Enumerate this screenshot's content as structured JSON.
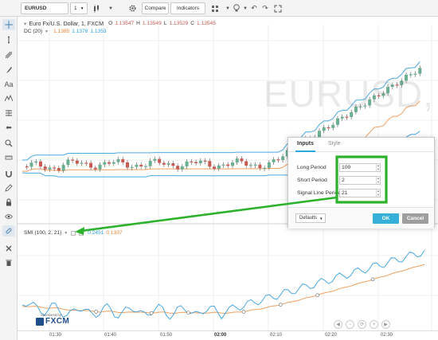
{
  "toolbar": {
    "symbol": "EURUSD",
    "interval": "1",
    "compare_label": "Compare",
    "indicators_label": "Indicators"
  },
  "chart": {
    "title": "Euro Fx/U.S. Dollar, 1, FXCM",
    "ohlc": {
      "o_label": "O",
      "o": "1.13547",
      "h_label": "H",
      "h": "1.13549",
      "l_label": "L",
      "l": "1.13529",
      "c_label": "C",
      "c": "1.13545"
    },
    "dc_label": "DC (20)",
    "dc_values": [
      "1.1385",
      "1.1378",
      "1.1353"
    ],
    "smi_label": "SMI (100, 2, 21)",
    "smi_values": [
      "0.2451",
      "0.1337"
    ],
    "watermark": "EURUSD,",
    "time_ticks": [
      "01:30",
      "01:40",
      "01:50",
      "02:00",
      "02:10",
      "02:20",
      "02:30"
    ],
    "bold_tick": "02:00"
  },
  "dialog": {
    "tab_inputs": "Inputs",
    "tab_style": "Style",
    "fields": [
      {
        "label": "Long Period",
        "value": "100"
      },
      {
        "label": "Short Period",
        "value": "2"
      },
      {
        "label": "Signal Line Period",
        "value": "21"
      }
    ],
    "defaults_label": "Defaults",
    "ok_label": "OK",
    "cancel_label": "Cancel"
  },
  "sponsor": {
    "line1": "Sponsored by",
    "line2": "FXCM"
  },
  "colors": {
    "price_up": "#6aaf90",
    "price_down": "#c95b53",
    "dc_upper_lower": "#4aa8e0",
    "dc_mid": "#f0a060",
    "smi_line": "#4aa8e0",
    "smi_signal": "#f0a060",
    "highlight": "#2db22d",
    "accent": "#36b0d8"
  }
}
